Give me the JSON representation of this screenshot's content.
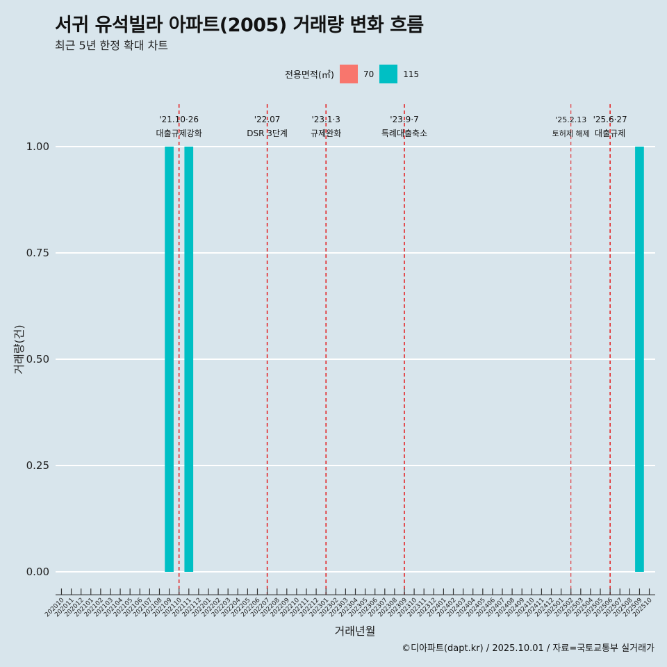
{
  "title": "서귀 유석빌라 아파트(2005) 거래량 변화 흐름",
  "subtitle": "최근 5년 한정 확대 차트",
  "caption": "©디아파트(dapt.kr) / 2025.10.01 / 자료=국토교통부 실거래가",
  "legend": {
    "title": "전용면적(㎡)",
    "items": [
      {
        "label": "70",
        "color": "#f8766d"
      },
      {
        "label": "115",
        "color": "#00bfc4"
      }
    ]
  },
  "chart_data": {
    "type": "bar",
    "title": "서귀 유석빌라 아파트(2005) 거래량 변화 흐름",
    "xlabel": "거래년월",
    "ylabel": "거래량(건)",
    "ylim": [
      0,
      1
    ],
    "yticks": [
      "0.00",
      "0.25",
      "0.50",
      "0.75",
      "1.00"
    ],
    "categories": [
      "202010",
      "202011",
      "202012",
      "202101",
      "202102",
      "202103",
      "202104",
      "202105",
      "202106",
      "202107",
      "202108",
      "202109",
      "202110",
      "202111",
      "202112",
      "202201",
      "202202",
      "202203",
      "202204",
      "202205",
      "202206",
      "202207",
      "202208",
      "202209",
      "202210",
      "202211",
      "202212",
      "202301",
      "202302",
      "202303",
      "202304",
      "202305",
      "202306",
      "202307",
      "202308",
      "202309",
      "202310",
      "202311",
      "202312",
      "202401",
      "202402",
      "202403",
      "202404",
      "202405",
      "202406",
      "202407",
      "202408",
      "202409",
      "202410",
      "202411",
      "202412",
      "202501",
      "202502",
      "202503",
      "202504",
      "202505",
      "202506",
      "202507",
      "202508",
      "202509",
      "202510"
    ],
    "series": [
      {
        "name": "115",
        "color": "#00bfc4",
        "points": [
          {
            "x": "202109",
            "y": 1
          },
          {
            "x": "202111",
            "y": 1
          },
          {
            "x": "202509",
            "y": 1
          }
        ]
      },
      {
        "name": "70",
        "color": "#f8766d",
        "points": []
      }
    ],
    "events": [
      {
        "x": "202110",
        "line1": "'21.10·26",
        "line2": "대출규제강화"
      },
      {
        "x": "202207",
        "line1": "'22.07",
        "line2": "DSR 3단계"
      },
      {
        "x": "202301",
        "line1": "'23.1·3",
        "line2": "규제완화"
      },
      {
        "x": "202309",
        "line1": "'23.9·7",
        "line2": "특례대출축소"
      },
      {
        "x": "202502",
        "line1": "'25.2.13",
        "line2": "토허제 해제",
        "small": true
      },
      {
        "x": "202506",
        "line1": "'25.6·27",
        "line2": "대출규제"
      }
    ]
  }
}
